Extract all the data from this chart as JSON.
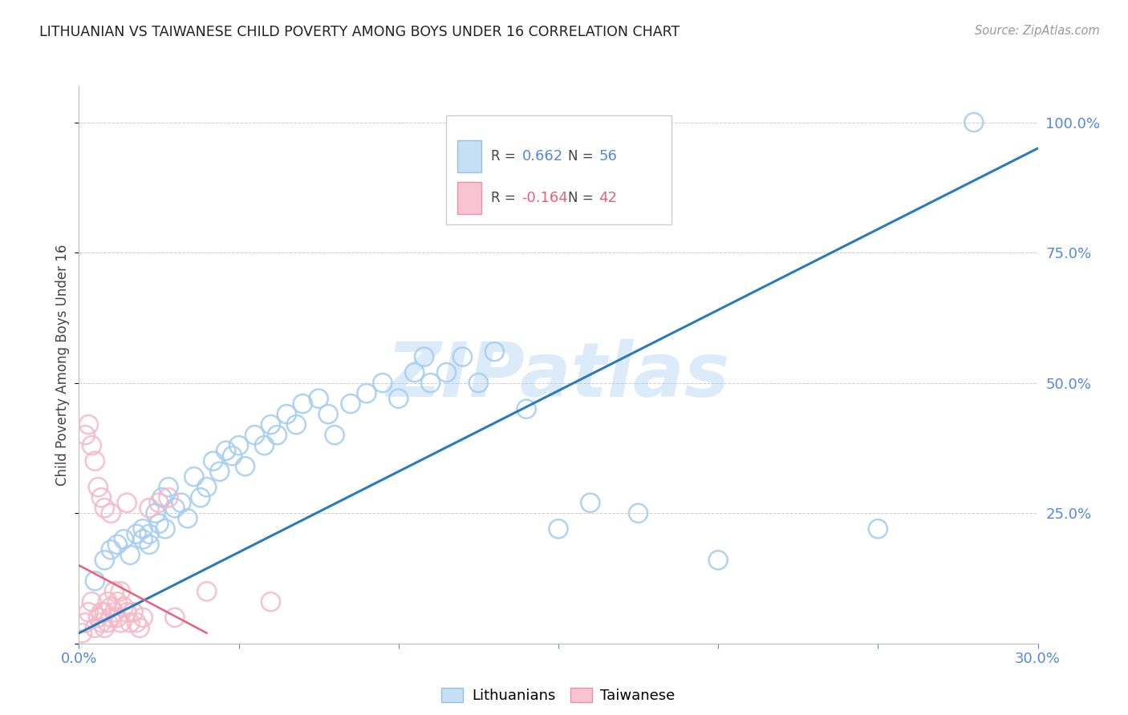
{
  "title": "LITHUANIAN VS TAIWANESE CHILD POVERTY AMONG BOYS UNDER 16 CORRELATION CHART",
  "source": "Source: ZipAtlas.com",
  "ylabel": "Child Poverty Among Boys Under 16",
  "x_min": 0.0,
  "x_max": 0.3,
  "y_min": 0.0,
  "y_max": 1.07,
  "x_ticks": [
    0.0,
    0.05,
    0.1,
    0.15,
    0.2,
    0.25,
    0.3
  ],
  "x_tick_labels": [
    "0.0%",
    "",
    "",
    "",
    "",
    "",
    "30.0%"
  ],
  "y_ticks": [
    0.0,
    0.25,
    0.5,
    0.75,
    1.0
  ],
  "y_tick_labels": [
    "",
    "25.0%",
    "50.0%",
    "75.0%",
    "100.0%"
  ],
  "legend_blue_r": "0.662",
  "legend_blue_n": "56",
  "legend_pink_r": "-0.164",
  "legend_pink_n": "42",
  "watermark": "ZIPatlas",
  "blue_color": "#a8cff0",
  "pink_color": "#f5b8c8",
  "blue_line_color": "#2b7bba",
  "pink_line_color": "#e8607a",
  "grid_color": "#cccccc",
  "title_color": "#222222",
  "axis_label_color": "#444444",
  "tick_color": "#5588dd",
  "lithuanians_x": [
    0.005,
    0.008,
    0.01,
    0.012,
    0.014,
    0.016,
    0.018,
    0.02,
    0.02,
    0.022,
    0.022,
    0.024,
    0.025,
    0.026,
    0.027,
    0.028,
    0.03,
    0.032,
    0.034,
    0.036,
    0.038,
    0.04,
    0.042,
    0.044,
    0.046,
    0.048,
    0.05,
    0.052,
    0.055,
    0.058,
    0.06,
    0.062,
    0.065,
    0.068,
    0.07,
    0.075,
    0.078,
    0.08,
    0.085,
    0.09,
    0.095,
    0.1,
    0.105,
    0.108,
    0.11,
    0.115,
    0.12,
    0.125,
    0.13,
    0.14,
    0.15,
    0.16,
    0.175,
    0.2,
    0.25,
    0.28
  ],
  "lithuanians_y": [
    0.12,
    0.16,
    0.18,
    0.19,
    0.2,
    0.17,
    0.21,
    0.2,
    0.22,
    0.19,
    0.21,
    0.25,
    0.23,
    0.28,
    0.22,
    0.3,
    0.26,
    0.27,
    0.24,
    0.32,
    0.28,
    0.3,
    0.35,
    0.33,
    0.37,
    0.36,
    0.38,
    0.34,
    0.4,
    0.38,
    0.42,
    0.4,
    0.44,
    0.42,
    0.46,
    0.47,
    0.44,
    0.4,
    0.46,
    0.48,
    0.5,
    0.47,
    0.52,
    0.55,
    0.5,
    0.52,
    0.55,
    0.5,
    0.56,
    0.45,
    0.22,
    0.27,
    0.25,
    0.16,
    0.22,
    1.0
  ],
  "taiwanese_x": [
    0.001,
    0.002,
    0.002,
    0.003,
    0.003,
    0.004,
    0.004,
    0.005,
    0.005,
    0.006,
    0.006,
    0.007,
    0.007,
    0.007,
    0.008,
    0.008,
    0.008,
    0.009,
    0.009,
    0.01,
    0.01,
    0.01,
    0.011,
    0.011,
    0.012,
    0.012,
    0.013,
    0.013,
    0.014,
    0.015,
    0.015,
    0.016,
    0.017,
    0.018,
    0.019,
    0.02,
    0.022,
    0.025,
    0.028,
    0.03,
    0.04,
    0.06
  ],
  "taiwanese_y": [
    0.02,
    0.04,
    0.4,
    0.06,
    0.42,
    0.08,
    0.38,
    0.03,
    0.35,
    0.05,
    0.3,
    0.04,
    0.28,
    0.06,
    0.03,
    0.06,
    0.26,
    0.04,
    0.08,
    0.05,
    0.07,
    0.25,
    0.06,
    0.1,
    0.05,
    0.08,
    0.04,
    0.1,
    0.07,
    0.06,
    0.27,
    0.04,
    0.06,
    0.04,
    0.03,
    0.05,
    0.26,
    0.27,
    0.28,
    0.05,
    0.1,
    0.08
  ],
  "blue_trendline_x": [
    0.0,
    0.3
  ],
  "blue_trendline_y": [
    0.02,
    0.95
  ],
  "pink_trendline_x": [
    0.0,
    0.04
  ],
  "pink_trendline_y": [
    0.15,
    0.02
  ]
}
